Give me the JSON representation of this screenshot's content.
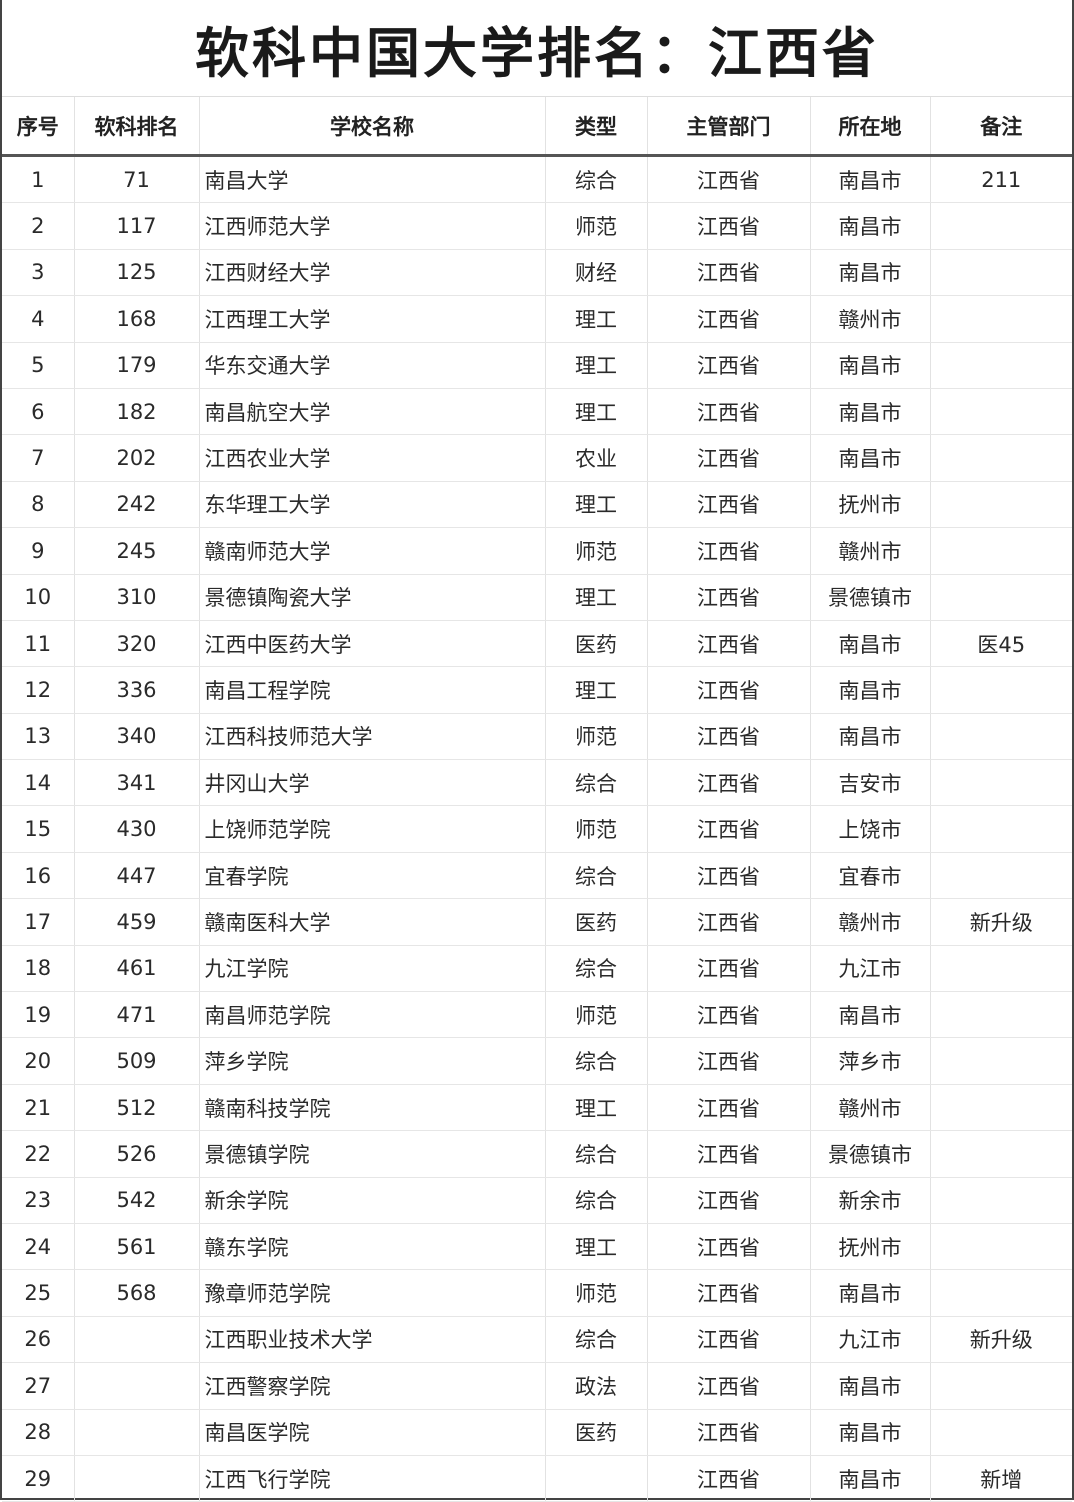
{
  "title": "软科中国大学排名：江西省",
  "columns": [
    "序号",
    "软科排名",
    "学校名称",
    "类型",
    "主管部门",
    "所在地",
    "备注"
  ],
  "rows": [
    [
      "1",
      "71",
      "南昌大学",
      "综合",
      "江西省",
      "南昌市",
      "211"
    ],
    [
      "2",
      "117",
      "江西师范大学",
      "师范",
      "江西省",
      "南昌市",
      ""
    ],
    [
      "3",
      "125",
      "江西财经大学",
      "财经",
      "江西省",
      "南昌市",
      ""
    ],
    [
      "4",
      "168",
      "江西理工大学",
      "理工",
      "江西省",
      "赣州市",
      ""
    ],
    [
      "5",
      "179",
      "华东交通大学",
      "理工",
      "江西省",
      "南昌市",
      ""
    ],
    [
      "6",
      "182",
      "南昌航空大学",
      "理工",
      "江西省",
      "南昌市",
      ""
    ],
    [
      "7",
      "202",
      "江西农业大学",
      "农业",
      "江西省",
      "南昌市",
      ""
    ],
    [
      "8",
      "242",
      "东华理工大学",
      "理工",
      "江西省",
      "抚州市",
      ""
    ],
    [
      "9",
      "245",
      "赣南师范大学",
      "师范",
      "江西省",
      "赣州市",
      ""
    ],
    [
      "10",
      "310",
      "景德镇陶瓷大学",
      "理工",
      "江西省",
      "景德镇市",
      ""
    ],
    [
      "11",
      "320",
      "江西中医药大学",
      "医药",
      "江西省",
      "南昌市",
      "医45"
    ],
    [
      "12",
      "336",
      "南昌工程学院",
      "理工",
      "江西省",
      "南昌市",
      ""
    ],
    [
      "13",
      "340",
      "江西科技师范大学",
      "师范",
      "江西省",
      "南昌市",
      ""
    ],
    [
      "14",
      "341",
      "井冈山大学",
      "综合",
      "江西省",
      "吉安市",
      ""
    ],
    [
      "15",
      "430",
      "上饶师范学院",
      "师范",
      "江西省",
      "上饶市",
      ""
    ],
    [
      "16",
      "447",
      "宜春学院",
      "综合",
      "江西省",
      "宜春市",
      ""
    ],
    [
      "17",
      "459",
      "赣南医科大学",
      "医药",
      "江西省",
      "赣州市",
      "新升级"
    ],
    [
      "18",
      "461",
      "九江学院",
      "综合",
      "江西省",
      "九江市",
      ""
    ],
    [
      "19",
      "471",
      "南昌师范学院",
      "师范",
      "江西省",
      "南昌市",
      ""
    ],
    [
      "20",
      "509",
      "萍乡学院",
      "综合",
      "江西省",
      "萍乡市",
      ""
    ],
    [
      "21",
      "512",
      "赣南科技学院",
      "理工",
      "江西省",
      "赣州市",
      ""
    ],
    [
      "22",
      "526",
      "景德镇学院",
      "综合",
      "江西省",
      "景德镇市",
      ""
    ],
    [
      "23",
      "542",
      "新余学院",
      "综合",
      "江西省",
      "新余市",
      ""
    ],
    [
      "24",
      "561",
      "赣东学院",
      "理工",
      "江西省",
      "抚州市",
      ""
    ],
    [
      "25",
      "568",
      "豫章师范学院",
      "师范",
      "江西省",
      "南昌市",
      ""
    ],
    [
      "26",
      "",
      "江西职业技术大学",
      "综合",
      "江西省",
      "九江市",
      "新升级"
    ],
    [
      "27",
      "",
      "江西警察学院",
      "政法",
      "江西省",
      "南昌市",
      ""
    ],
    [
      "28",
      "",
      "南昌医学院",
      "医药",
      "江西省",
      "南昌市",
      ""
    ],
    [
      "29",
      "",
      "江西飞行学院",
      "",
      "江西省",
      "南昌市",
      "新增"
    ]
  ]
}
